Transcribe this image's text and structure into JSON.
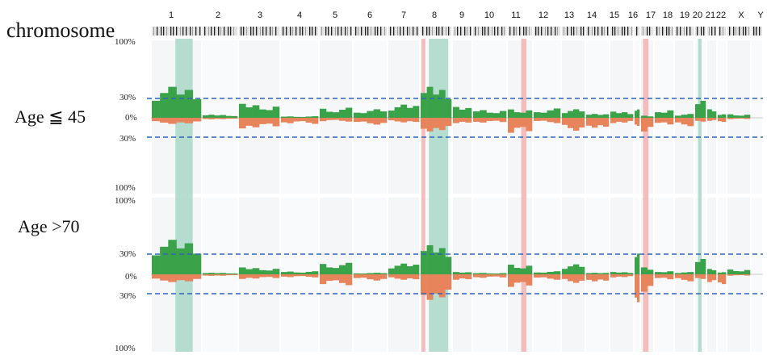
{
  "chart_data": {
    "type": "area",
    "title": "",
    "header_label": "chromosome",
    "chromosomes": [
      "1",
      "2",
      "3",
      "4",
      "5",
      "6",
      "7",
      "8",
      "9",
      "10",
      "11",
      "12",
      "13",
      "14",
      "15",
      "16",
      "17",
      "18",
      "19",
      "20",
      "21",
      "22",
      "X",
      "Y"
    ],
    "gain_color": "#3aa34a",
    "loss_color": "#e8845c",
    "highlight_green": "#a9d8c8",
    "highlight_red": "#f3b1b1",
    "threshold_color": "#2f64b5",
    "threshold_labels": [
      "30%",
      "30%"
    ],
    "ylim_percent": [
      -100,
      100
    ],
    "highlights": {
      "green_chromosomes": [
        "1",
        "8",
        "20"
      ],
      "red_chromosomes": [
        "8",
        "11",
        "17"
      ]
    },
    "panels": [
      {
        "label": "Age ≦ 45",
        "axis_top_label": "100%",
        "axis_zero_label": "0%",
        "axis_bottom_label": "100%",
        "threshold_upper_label": "30%",
        "threshold_lower_label": "30%",
        "gain_percent": [
          40,
          4,
          18,
          2,
          13,
          11,
          17,
          40,
          14,
          11,
          12,
          12,
          11,
          5,
          8,
          12,
          3,
          12,
          5,
          22,
          11,
          5,
          5,
          0
        ],
        "loss_percent": [
          8,
          2,
          14,
          8,
          5,
          9,
          6,
          18,
          7,
          7,
          22,
          7,
          17,
          13,
          7,
          12,
          20,
          11,
          11,
          5,
          4,
          6,
          2,
          0
        ]
      },
      {
        "label": "Age >70",
        "axis_top_label": "100%",
        "axis_zero_label": "0%",
        "axis_bottom_label": "100%",
        "threshold_upper_label": "30%",
        "threshold_lower_label": "30%",
        "gain_percent": [
          45,
          2,
          9,
          4,
          15,
          2,
          14,
          38,
          3,
          2,
          14,
          4,
          13,
          2,
          3,
          30,
          10,
          5,
          3,
          20,
          7,
          3,
          7,
          0
        ],
        "loss_percent": [
          10,
          2,
          6,
          4,
          14,
          8,
          7,
          33,
          7,
          5,
          18,
          7,
          11,
          9,
          4,
          40,
          25,
          8,
          9,
          6,
          10,
          14,
          2,
          0
        ]
      }
    ]
  }
}
